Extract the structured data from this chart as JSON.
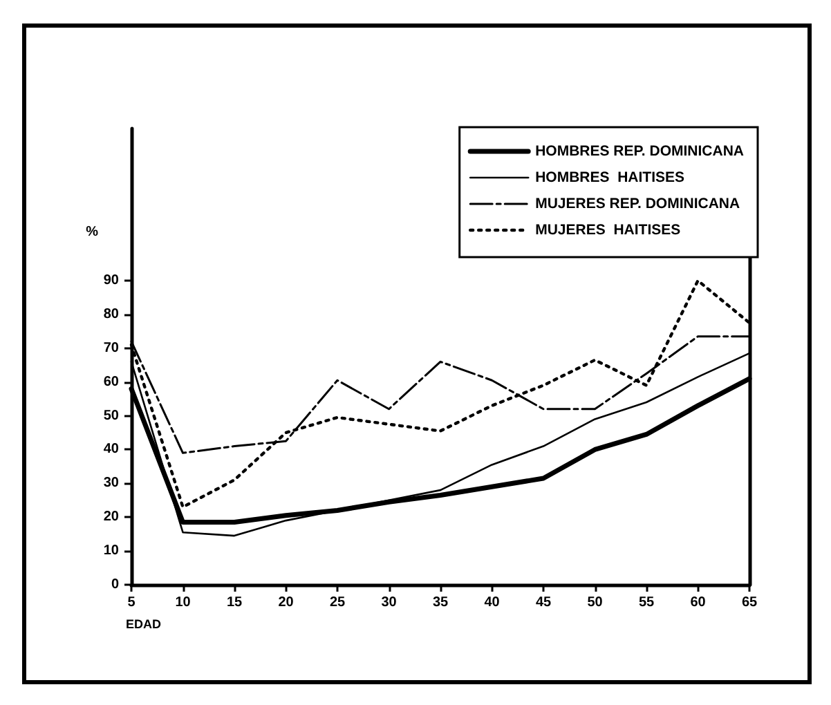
{
  "chart_data": {
    "type": "line",
    "xlabel": "EDAD",
    "ylabel": "%",
    "x": [
      5,
      10,
      15,
      20,
      25,
      30,
      35,
      40,
      45,
      50,
      55,
      60,
      65
    ],
    "xlim": [
      5,
      65
    ],
    "xticks": [
      5,
      10,
      15,
      20,
      25,
      30,
      35,
      40,
      45,
      50,
      55,
      60,
      65
    ],
    "ylim": [
      0,
      135
    ],
    "yticks": [
      0,
      10,
      20,
      30,
      40,
      50,
      60,
      70,
      80,
      90
    ],
    "series": [
      {
        "name": "HOMBRES REP. DOMINICANA",
        "color": "#000000",
        "line_style": "solid",
        "values": [
          58,
          18.5,
          18.5,
          20.5,
          22,
          24.5,
          26.5,
          29,
          31.5,
          40,
          44.5,
          53,
          61
        ]
      },
      {
        "name": "HOMBRES  HAITISES",
        "color": "#000000",
        "line_style": "solid",
        "values": [
          66,
          15.5,
          14.5,
          19,
          22,
          25,
          28,
          35.5,
          41,
          49,
          54,
          61.5,
          68.5
        ]
      },
      {
        "name": "MUJERES REP. DOMINICANA",
        "color": "#000000",
        "line_style": "dashed",
        "values": [
          72,
          39,
          41,
          42.5,
          60.5,
          52,
          66,
          60.5,
          52,
          52,
          62.5,
          73.5,
          73.5
        ]
      },
      {
        "name": "MUJERES  HAITISES",
        "color": "#000000",
        "line_style": "dotted",
        "values": [
          71,
          23,
          31,
          45,
          49.5,
          47.5,
          45.5,
          53,
          59,
          66.5,
          59,
          90,
          77.5
        ]
      }
    ],
    "legend": "top right",
    "grid": false,
    "marker": "none"
  }
}
